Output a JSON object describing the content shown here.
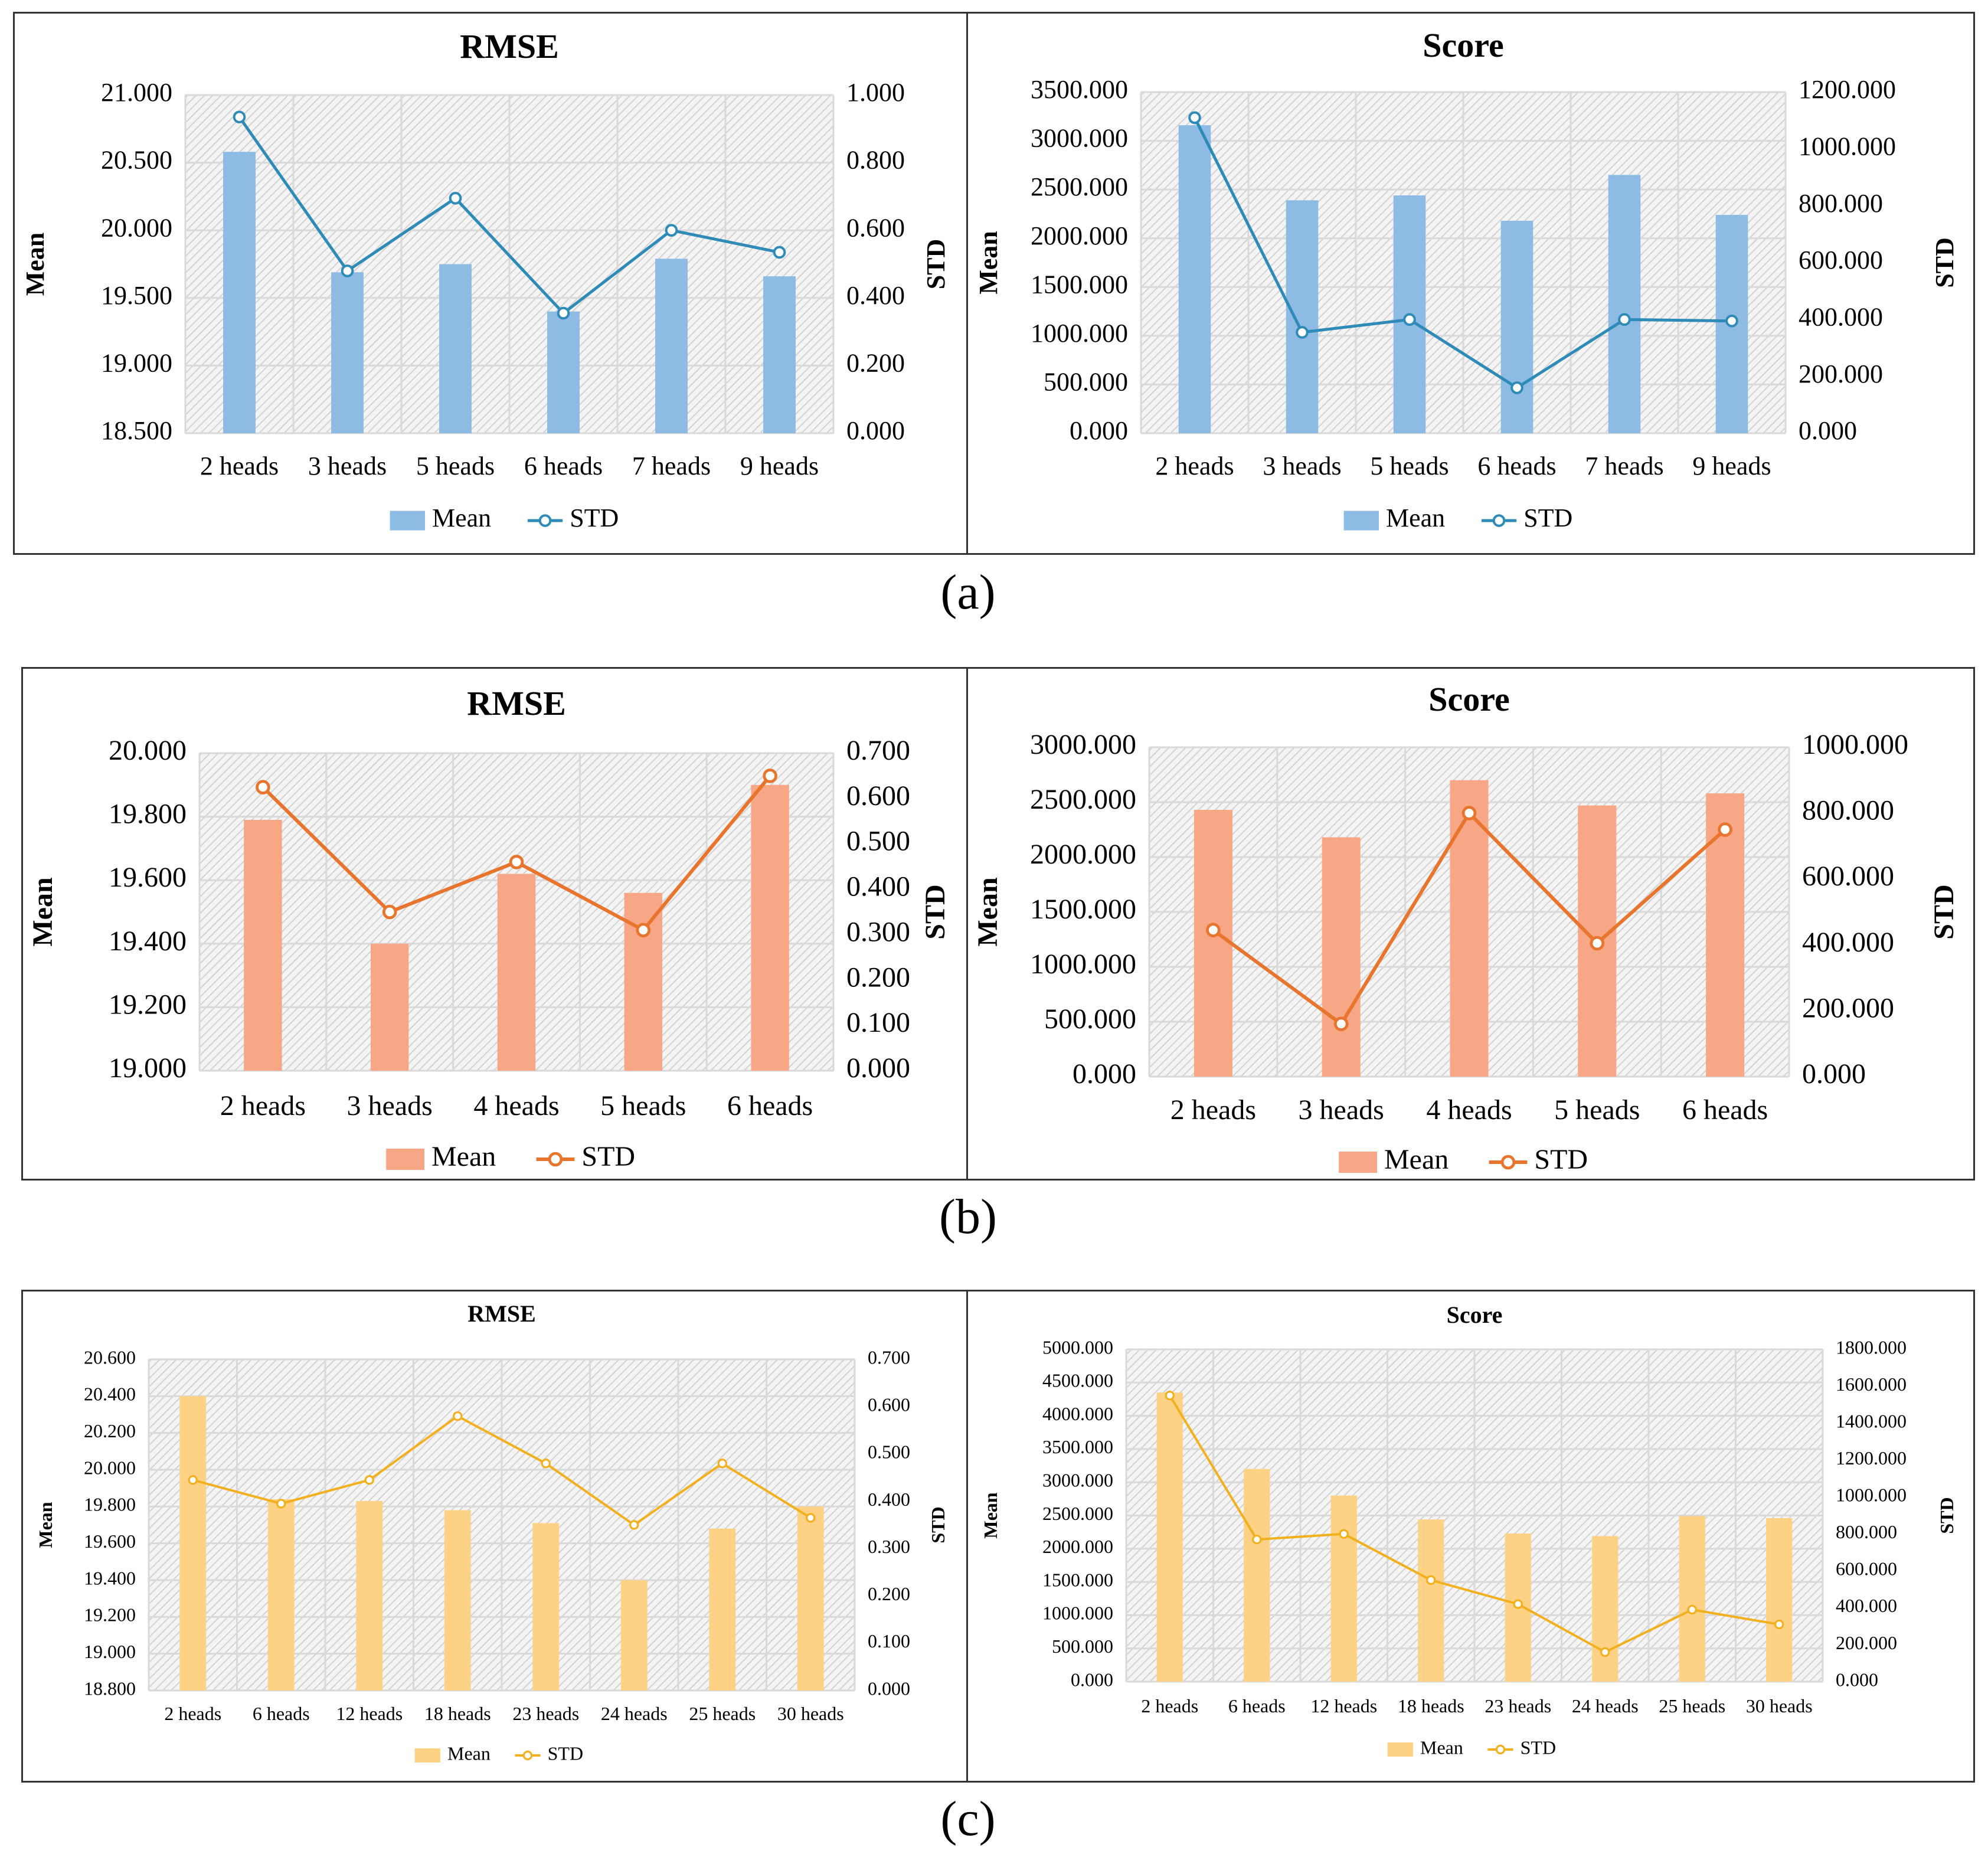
{
  "panels": [
    {
      "label": "(a)"
    },
    {
      "label": "(b)"
    },
    {
      "label": "(c)"
    }
  ],
  "chart_data": [
    {
      "type": "bar",
      "panel": "a",
      "title": "RMSE",
      "categories": [
        "2 heads",
        "3 heads",
        "5 heads",
        "6 heads",
        "7 heads",
        "9 heads"
      ],
      "series": [
        {
          "name": "Mean",
          "kind": "bar",
          "axis": "left",
          "values": [
            20.58,
            19.69,
            19.75,
            19.4,
            19.79,
            19.66
          ]
        },
        {
          "name": "STD",
          "kind": "line",
          "axis": "right",
          "values": [
            0.935,
            0.48,
            0.695,
            0.355,
            0.6,
            0.535
          ]
        }
      ],
      "ylabel": "Mean",
      "y2label": "STD",
      "ylim": [
        18.5,
        21.0
      ],
      "yticks": [
        "21.000",
        "20.500",
        "20.000",
        "19.500",
        "19.000",
        "18.500"
      ],
      "y2lim": [
        0,
        1.0
      ],
      "y2ticks": [
        "1.000",
        "0.800",
        "0.600",
        "0.400",
        "0.200",
        "0.000"
      ],
      "legend": [
        "Mean",
        "STD"
      ],
      "colors": {
        "bar": "#8dbbe3",
        "line": "#2e8bb8"
      }
    },
    {
      "type": "bar",
      "panel": "a",
      "title": "Score",
      "categories": [
        "2 heads",
        "3 heads",
        "5 heads",
        "6 heads",
        "7 heads",
        "9 heads"
      ],
      "series": [
        {
          "name": "Mean",
          "kind": "bar",
          "axis": "left",
          "values": [
            3160,
            2390,
            2440,
            2180,
            2650,
            2240
          ]
        },
        {
          "name": "STD",
          "kind": "line",
          "axis": "right",
          "values": [
            1110,
            355,
            400,
            160,
            400,
            395
          ]
        }
      ],
      "ylabel": "Mean",
      "y2label": "STD",
      "ylim": [
        0,
        3500
      ],
      "yticks": [
        "3500.000",
        "3000.000",
        "2500.000",
        "2000.000",
        "1500.000",
        "1000.000",
        "500.000",
        "0.000"
      ],
      "y2lim": [
        0,
        1200
      ],
      "y2ticks": [
        "1200.000",
        "1000.000",
        "800.000",
        "600.000",
        "400.000",
        "200.000",
        "0.000"
      ],
      "legend": [
        "Mean",
        "STD"
      ],
      "colors": {
        "bar": "#8dbbe3",
        "line": "#2e8bb8"
      }
    },
    {
      "type": "bar",
      "panel": "b",
      "title": "RMSE",
      "categories": [
        "2 heads",
        "3 heads",
        "4 heads",
        "5 heads",
        "6 heads"
      ],
      "series": [
        {
          "name": "Mean",
          "kind": "bar",
          "axis": "left",
          "values": [
            19.79,
            19.4,
            19.62,
            19.56,
            19.9
          ]
        },
        {
          "name": "STD",
          "kind": "line",
          "axis": "right",
          "values": [
            0.625,
            0.35,
            0.46,
            0.31,
            0.65
          ]
        }
      ],
      "ylabel": "Mean",
      "y2label": "STD",
      "ylim": [
        19.0,
        20.0
      ],
      "yticks": [
        "20.000",
        "19.800",
        "19.600",
        "19.400",
        "19.200",
        "19.000"
      ],
      "y2lim": [
        0,
        0.7
      ],
      "y2ticks": [
        "0.700",
        "0.600",
        "0.500",
        "0.400",
        "0.300",
        "0.200",
        "0.100",
        "0.000"
      ],
      "legend": [
        "Mean",
        "STD"
      ],
      "colors": {
        "bar": "#f7a686",
        "line": "#e8752d"
      }
    },
    {
      "type": "bar",
      "panel": "b",
      "title": "Score",
      "categories": [
        "2 heads",
        "3 heads",
        "4 heads",
        "5 heads",
        "6 heads"
      ],
      "series": [
        {
          "name": "Mean",
          "kind": "bar",
          "axis": "left",
          "values": [
            2430,
            2180,
            2700,
            2470,
            2580
          ]
        },
        {
          "name": "STD",
          "kind": "line",
          "axis": "right",
          "values": [
            445,
            160,
            800,
            405,
            750
          ]
        }
      ],
      "ylabel": "Mean",
      "y2label": "STD",
      "ylim": [
        0,
        3000
      ],
      "yticks": [
        "3000.000",
        "2500.000",
        "2000.000",
        "1500.000",
        "1000.000",
        "500.000",
        "0.000"
      ],
      "y2lim": [
        0,
        1000
      ],
      "y2ticks": [
        "1000.000",
        "800.000",
        "600.000",
        "400.000",
        "200.000",
        "0.000"
      ],
      "legend": [
        "Mean",
        "STD"
      ],
      "colors": {
        "bar": "#f7a686",
        "line": "#e8752d"
      }
    },
    {
      "type": "bar",
      "panel": "c",
      "title": "RMSE",
      "categories": [
        "2 heads",
        "6 heads",
        "12 heads",
        "18 heads",
        "23 heads",
        "24 heads",
        "25 heads",
        "30 heads"
      ],
      "series": [
        {
          "name": "Mean",
          "kind": "bar",
          "axis": "left",
          "values": [
            20.4,
            19.84,
            19.83,
            19.78,
            19.71,
            19.4,
            19.68,
            19.8
          ]
        },
        {
          "name": "STD",
          "kind": "line",
          "axis": "right",
          "values": [
            0.445,
            0.395,
            0.445,
            0.58,
            0.48,
            0.35,
            0.48,
            0.365
          ]
        }
      ],
      "ylabel": "Mean",
      "y2label": "STD",
      "ylim": [
        18.8,
        20.6
      ],
      "yticks": [
        "20.600",
        "20.400",
        "20.200",
        "20.000",
        "19.800",
        "19.600",
        "19.400",
        "19.200",
        "19.000",
        "18.800"
      ],
      "y2lim": [
        0,
        0.7
      ],
      "y2ticks": [
        "0.700",
        "0.600",
        "0.500",
        "0.400",
        "0.300",
        "0.200",
        "0.100",
        "0.000"
      ],
      "legend": [
        "Mean",
        "STD"
      ],
      "colors": {
        "bar": "#fdd285",
        "line": "#f2b01e"
      }
    },
    {
      "type": "bar",
      "panel": "c",
      "title": "Score",
      "categories": [
        "2 heads",
        "6 heads",
        "12 heads",
        "18 heads",
        "23 heads",
        "24 heads",
        "25 heads",
        "30 heads"
      ],
      "series": [
        {
          "name": "Mean",
          "kind": "bar",
          "axis": "left",
          "values": [
            4350,
            3200,
            2800,
            2440,
            2230,
            2190,
            2490,
            2460
          ]
        },
        {
          "name": "STD",
          "kind": "line",
          "axis": "right",
          "values": [
            1550,
            770,
            800,
            550,
            420,
            160,
            390,
            310
          ]
        }
      ],
      "ylabel": "Mean",
      "y2label": "STD",
      "ylim": [
        0,
        5000
      ],
      "yticks": [
        "5000.000",
        "4500.000",
        "4000.000",
        "3500.000",
        "3000.000",
        "2500.000",
        "2000.000",
        "1500.000",
        "1000.000",
        "500.000",
        "0.000"
      ],
      "y2lim": [
        0,
        1800
      ],
      "y2ticks": [
        "1800.000",
        "1600.000",
        "1400.000",
        "1200.000",
        "1000.000",
        "800.000",
        "600.000",
        "400.000",
        "200.000",
        "0.000"
      ],
      "legend": [
        "Mean",
        "STD"
      ],
      "colors": {
        "bar": "#fdd285",
        "line": "#f2b01e"
      }
    }
  ]
}
